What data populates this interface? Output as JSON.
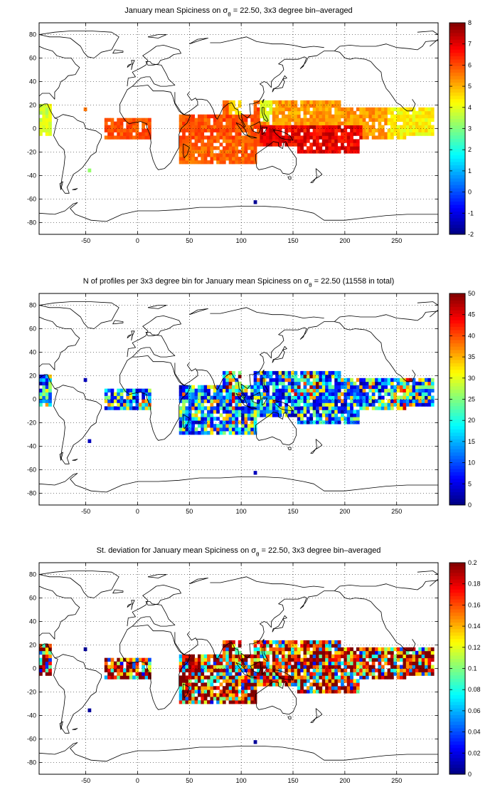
{
  "figure": {
    "panels": [
      {
        "id": "mean",
        "title": "January mean Spiciness on σ",
        "title_sub": "θ",
        "title_tail": " = 22.50, 3x3 degree bin–averaged",
        "colorbar": {
          "min": -2,
          "max": 8,
          "ticks": [
            "-2",
            "-1",
            "0",
            "1",
            "2",
            "3",
            "4",
            "5",
            "6",
            "7",
            "8"
          ]
        }
      },
      {
        "id": "count",
        "title": "N of profiles per 3x3 degree bin for January mean Spiciness on σ",
        "title_sub": "θ",
        "title_tail": " = 22.50 (11558 in total)",
        "colorbar": {
          "min": 0,
          "max": 50,
          "ticks": [
            "0",
            "5",
            "10",
            "15",
            "20",
            "25",
            "30",
            "35",
            "40",
            "45",
            "50"
          ]
        }
      },
      {
        "id": "stdev",
        "title": "St. deviation for January mean Spiciness on σ",
        "title_sub": "θ",
        "title_tail": " = 22.50, 3x3 degree bin–averaged",
        "colorbar": {
          "min": 0,
          "max": 0.2,
          "ticks": [
            "0",
            "0.02",
            "0.04",
            "0.06",
            "0.08",
            "0.1",
            "0.12",
            "0.14",
            "0.16",
            "0.18",
            "0.2"
          ]
        }
      }
    ],
    "axes": {
      "x_range": [
        -95,
        290
      ],
      "y_range": [
        -90,
        90
      ],
      "x_ticks": [
        "-50",
        "0",
        "50",
        "100",
        "150",
        "200",
        "250"
      ],
      "y_ticks": [
        "80",
        "60",
        "40",
        "20",
        "0",
        "-20",
        "-40",
        "-60",
        "-80"
      ],
      "grid": "dotted"
    },
    "colormap": "jet"
  }
}
